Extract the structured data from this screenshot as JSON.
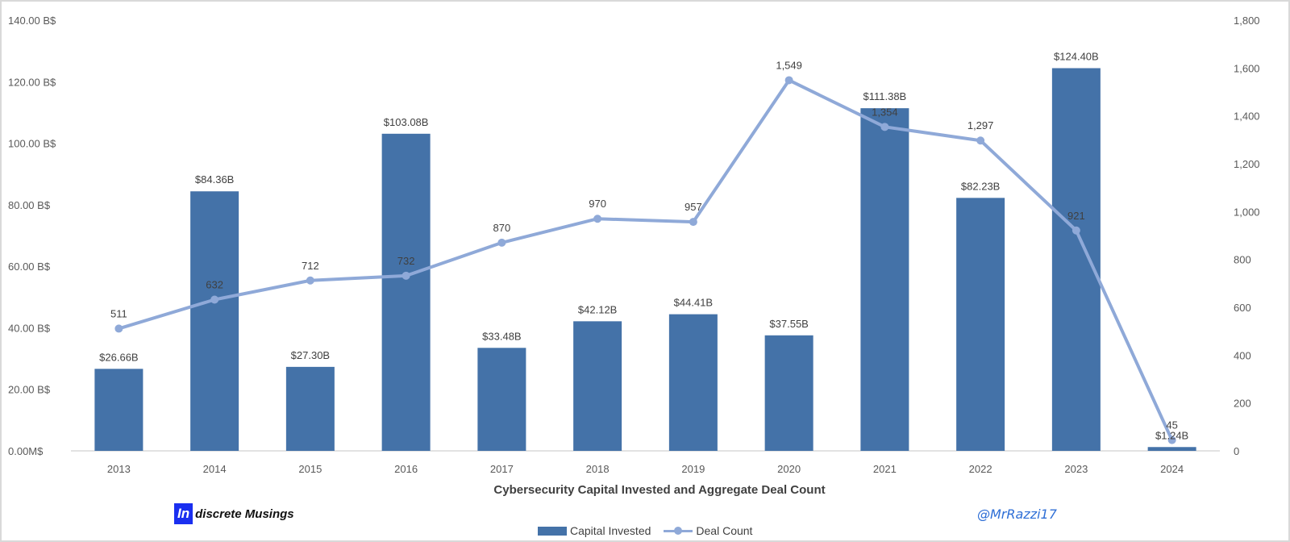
{
  "chart_data": {
    "type": "bar",
    "title": "Cybersecurity Capital Invested and Aggregate Deal Count",
    "categories": [
      "2013",
      "2014",
      "2015",
      "2016",
      "2017",
      "2018",
      "2019",
      "2020",
      "2021",
      "2022",
      "2023",
      "2024"
    ],
    "series": [
      {
        "name": "Capital Invested",
        "type": "bar",
        "axis": "left",
        "color": "#4472a8",
        "values": [
          26.66,
          84.36,
          27.3,
          103.08,
          33.48,
          42.12,
          44.41,
          37.55,
          111.38,
          82.23,
          124.4,
          1.24
        ],
        "labels": [
          "$26.66B",
          "$84.36B",
          "$27.30B",
          "$103.08B",
          "$33.48B",
          "$42.12B",
          "$44.41B",
          "$37.55B",
          "$111.38B",
          "$82.23B",
          "$124.40B",
          "$1.24B"
        ]
      },
      {
        "name": "Deal Count",
        "type": "line",
        "axis": "right",
        "color": "#8fa9d8",
        "values": [
          511,
          632,
          712,
          732,
          870,
          970,
          957,
          1549,
          1354,
          1297,
          921,
          45
        ],
        "labels": [
          "511",
          "632",
          "712",
          "732",
          "870",
          "970",
          "957",
          "1,549",
          "1,354",
          "1,297",
          "921",
          "45"
        ]
      }
    ],
    "y_left": {
      "ylim": [
        0,
        140
      ],
      "ticks": [
        0,
        20,
        40,
        60,
        80,
        100,
        120,
        140
      ],
      "tick_labels": [
        "0.00M$",
        "20.00 B$",
        "40.00 B$",
        "60.00 B$",
        "80.00 B$",
        "100.00 B$",
        "120.00 B$",
        "140.00 B$"
      ]
    },
    "y_right": {
      "ylim": [
        0,
        1800
      ],
      "ticks": [
        0,
        200,
        400,
        600,
        800,
        1000,
        1200,
        1400,
        1600,
        1800
      ],
      "tick_labels": [
        "0",
        "200",
        "400",
        "600",
        "800",
        "1,000",
        "1,200",
        "1,400",
        "1,600",
        "1,800"
      ]
    },
    "grid": false,
    "legend_position": "bottom"
  },
  "branding": {
    "logo_mark": "In",
    "logo_text": "discrete Musings",
    "handle": "@MrRazzi17"
  }
}
